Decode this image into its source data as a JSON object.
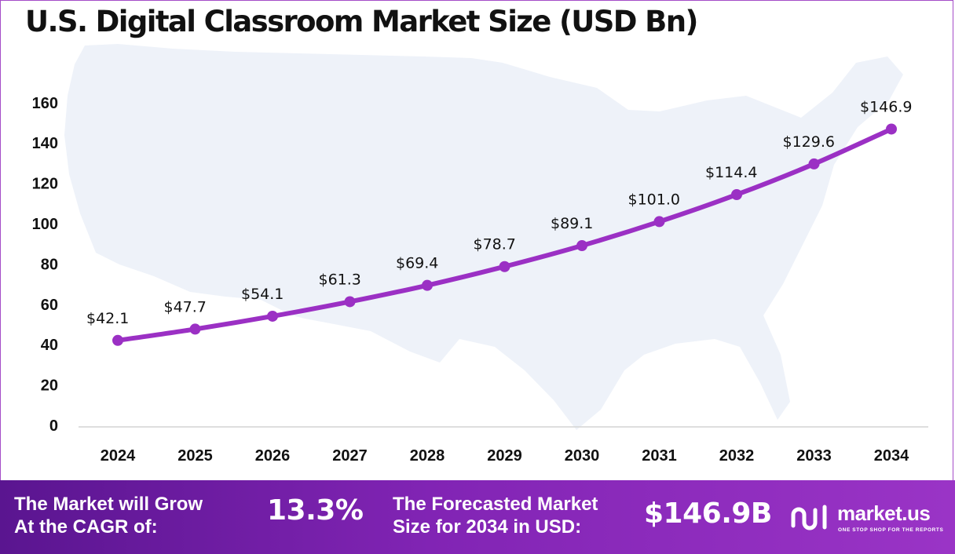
{
  "chart_data": {
    "type": "line",
    "title": "U.S. Digital Classroom Market Size (USD Bn)",
    "categories": [
      "2024",
      "2025",
      "2026",
      "2027",
      "2028",
      "2029",
      "2030",
      "2031",
      "2032",
      "2033",
      "2034"
    ],
    "values": [
      42.1,
      47.7,
      54.1,
      61.3,
      69.4,
      78.7,
      89.1,
      101.0,
      114.4,
      129.6,
      146.9
    ],
    "data_labels": [
      "$42.1",
      "$47.7",
      "$54.1",
      "$61.3",
      "$69.4",
      "$78.7",
      "$89.1",
      "$101.0",
      "$114.4",
      "$129.6",
      "$146.9"
    ],
    "y_ticks": [
      0,
      20,
      40,
      60,
      80,
      100,
      120,
      140,
      160
    ],
    "ylim": [
      0,
      160
    ],
    "grid": false,
    "legend": "none",
    "line_color": "#9b30c4",
    "background_map": "United States silhouette"
  },
  "footer": {
    "cagr_label_line1": "The Market will Grow",
    "cagr_label_line2": "At the CAGR of:",
    "cagr_value": "13.3%",
    "forecast_label_line1": "The Forecasted Market",
    "forecast_label_line2": "Size for 2034 in USD:",
    "forecast_value": "$146.9B"
  },
  "brand": {
    "name": "market.us",
    "tagline": "ONE STOP SHOP FOR THE REPORTS",
    "logo_icon": "market-us-logo-icon"
  },
  "colors": {
    "accent": "#9b30c4",
    "footer_start": "#5a1590",
    "footer_end": "#9a34c6",
    "map_fill": "#eef2f9"
  }
}
